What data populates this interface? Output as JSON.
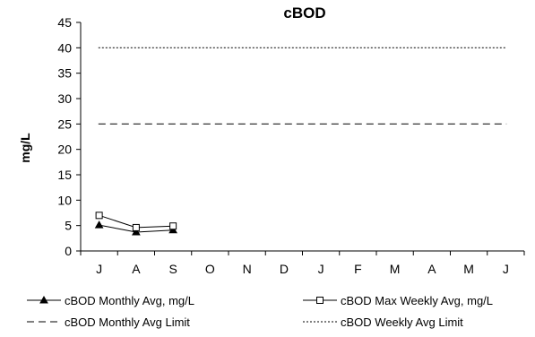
{
  "chart_data": {
    "type": "line",
    "title": "cBOD",
    "xlabel": "",
    "ylabel": "mg/L",
    "categories": [
      "J",
      "A",
      "S",
      "O",
      "N",
      "D",
      "J",
      "F",
      "M",
      "A",
      "M",
      "J"
    ],
    "ylim": [
      0,
      45
    ],
    "yticks": [
      0,
      5,
      10,
      15,
      20,
      25,
      30,
      35,
      40,
      45
    ],
    "grid": false,
    "legend_position": "bottom",
    "series": [
      {
        "name": "cBOD Monthly Avg, mg/L",
        "values": [
          5.1,
          3.7,
          4.1,
          null,
          null,
          null,
          null,
          null,
          null,
          null,
          null,
          null
        ],
        "color": "#000000",
        "style": "solid",
        "marker": "filled-triangle"
      },
      {
        "name": "cBOD Max Weekly Avg, mg/L",
        "values": [
          7.0,
          4.6,
          4.9,
          null,
          null,
          null,
          null,
          null,
          null,
          null,
          null,
          null
        ],
        "color": "#000000",
        "style": "solid",
        "marker": "open-square"
      },
      {
        "name": "cBOD Monthly Avg Limit",
        "values": [
          25,
          25,
          25,
          25,
          25,
          25,
          25,
          25,
          25,
          25,
          25,
          25
        ],
        "color": "#000000",
        "style": "dashed",
        "marker": "none"
      },
      {
        "name": "cBOD Weekly Avg Limit",
        "values": [
          40,
          40,
          40,
          40,
          40,
          40,
          40,
          40,
          40,
          40,
          40,
          40
        ],
        "color": "#000000",
        "style": "dotted",
        "marker": "none"
      }
    ]
  }
}
